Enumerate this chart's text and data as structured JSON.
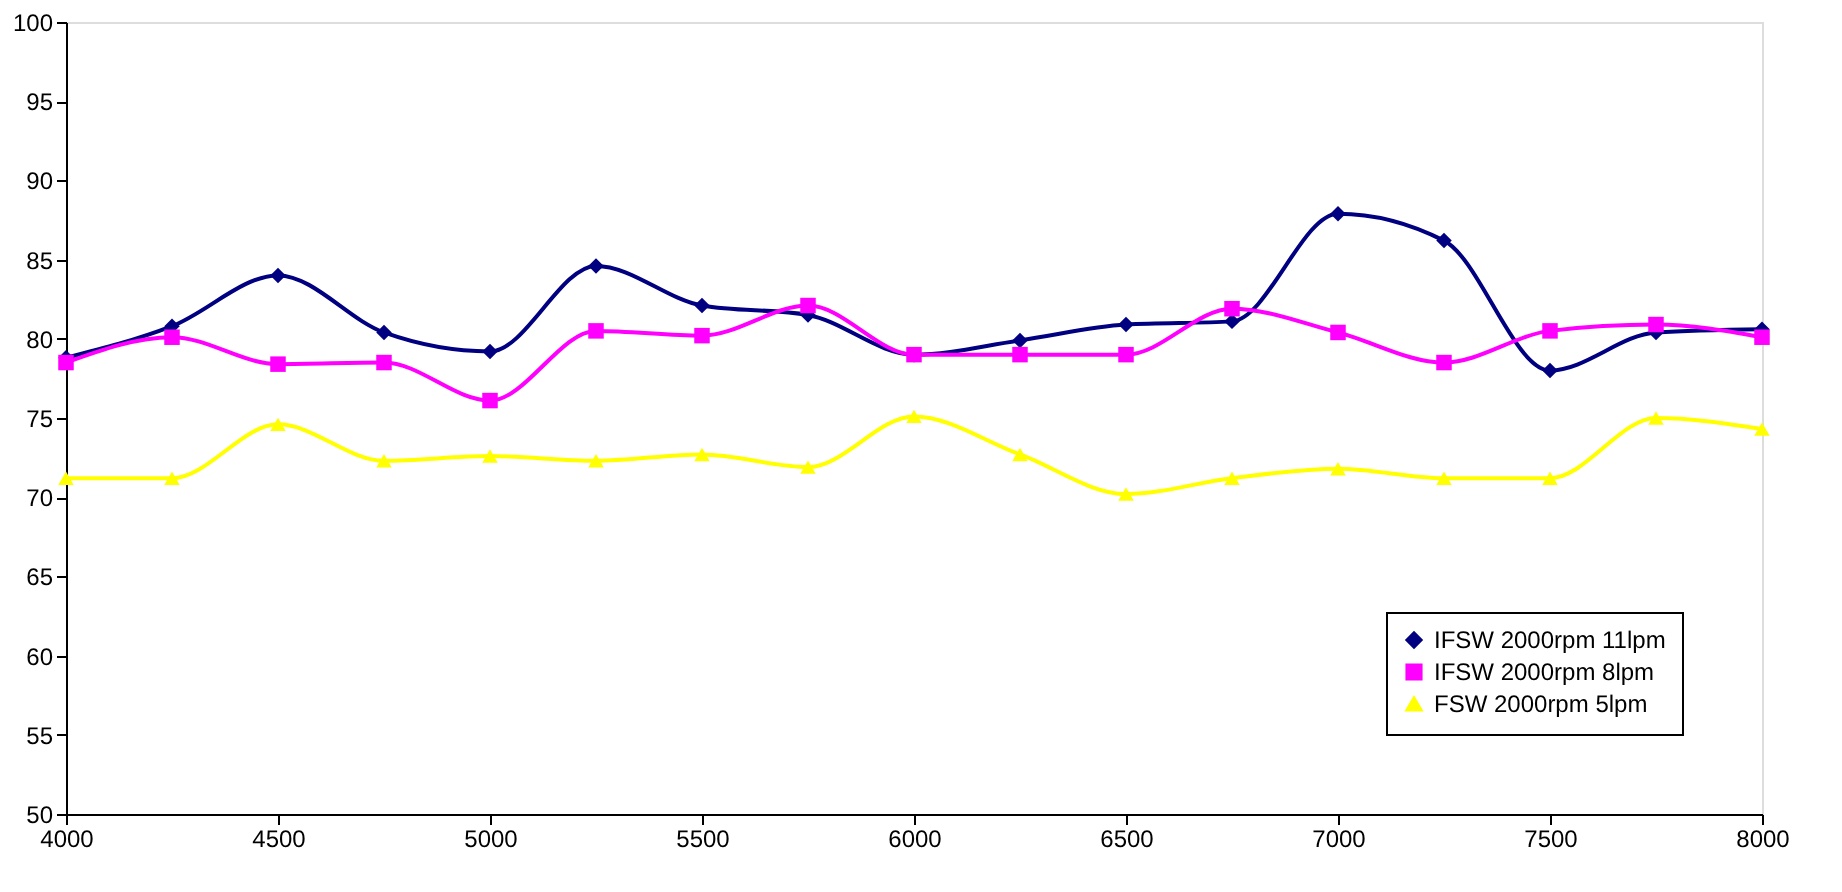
{
  "chart_data": {
    "type": "line",
    "x": [
      4000,
      4250,
      4500,
      4750,
      5000,
      5250,
      5500,
      5750,
      6000,
      6250,
      6500,
      6750,
      7000,
      7250,
      7500,
      7750,
      8000
    ],
    "series": [
      {
        "name": "IFSW 2000rpm 11lpm",
        "color": "#000080",
        "marker": "diamond",
        "values": [
          78.8,
          80.8,
          84.0,
          80.4,
          79.2,
          84.6,
          82.1,
          81.5,
          79.0,
          79.9,
          80.9,
          81.1,
          87.9,
          86.2,
          78.0,
          80.4,
          80.6
        ]
      },
      {
        "name": "IFSW 2000rpm 8lpm",
        "color": "#ff00ff",
        "marker": "square",
        "values": [
          78.5,
          80.1,
          78.4,
          78.5,
          76.1,
          80.5,
          80.2,
          82.1,
          79.0,
          79.0,
          79.0,
          81.9,
          80.4,
          78.5,
          80.5,
          80.9,
          80.1
        ]
      },
      {
        "name": "FSW 2000rpm 5lpm",
        "color": "#ffff00",
        "marker": "triangle",
        "values": [
          71.2,
          71.2,
          74.6,
          72.3,
          72.6,
          72.3,
          72.7,
          71.9,
          75.1,
          72.7,
          70.2,
          71.2,
          71.8,
          71.2,
          71.2,
          75.0,
          74.3
        ]
      }
    ],
    "xlim": [
      4000,
      8000
    ],
    "xticks": [
      4000,
      4500,
      5000,
      5500,
      6000,
      6500,
      7000,
      7500,
      8000
    ],
    "ylim": [
      50,
      100
    ],
    "yticks": [
      50,
      55,
      60,
      65,
      70,
      75,
      80,
      85,
      90,
      95,
      100
    ],
    "grid": false,
    "legend": "bottom right",
    "line_style": "solid"
  }
}
